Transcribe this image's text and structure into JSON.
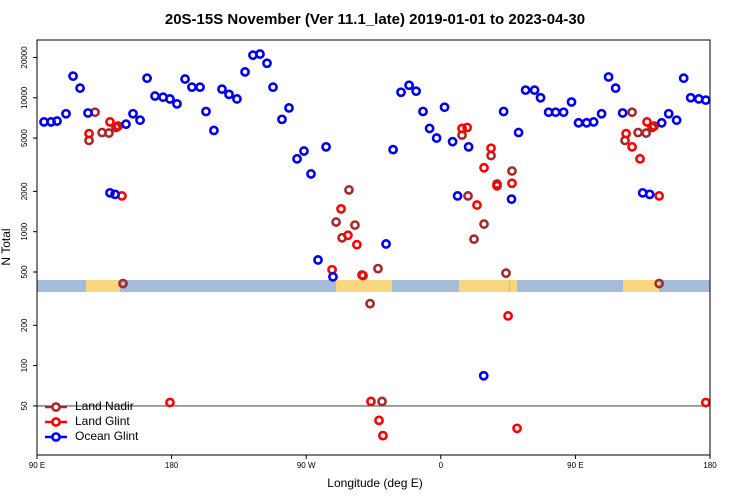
{
  "chart_data": {
    "type": "scatter",
    "title": "20S-15S November (Ver 11.1_late)   2019-01-01 to 2023-04-30",
    "x_label": "Longitude (deg E)",
    "y_label": "N Total",
    "log_y": true,
    "xlim": [
      90,
      540
    ],
    "ylim": [
      21.5,
      27000
    ],
    "xticks": [
      {
        "value": 90,
        "label": "90 E"
      },
      {
        "value": 180,
        "label": "180"
      },
      {
        "value": 270,
        "label": "90 W"
      },
      {
        "value": 360,
        "label": "0"
      },
      {
        "value": 450,
        "label": "90 E"
      },
      {
        "value": 540,
        "label": "180"
      }
    ],
    "yticks": [
      50,
      100,
      200,
      500,
      1000,
      2000,
      5000,
      10000,
      20000
    ],
    "reference_line": 50,
    "legend": "lower left",
    "series": [
      {
        "name": "Land Nadir",
        "color": "#a52a2a",
        "x": [
          124.8,
          128.8,
          133.5,
          138.1,
          142.8,
          147.5,
          290.0,
          294.0,
          298.6,
          302.6,
          307.3,
          312.7,
          318.0,
          320.7,
          374.2,
          378.2,
          382.2,
          388.9,
          393.6,
          397.6,
          403.6,
          407.6,
          483.2,
          487.9,
          491.9,
          497.3,
          501.3,
          506.0
        ],
        "values": [
          4800,
          7800,
          5500,
          5450,
          6000,
          410,
          1180,
          900,
          2050,
          1120,
          475,
          290,
          530,
          54,
          5260,
          1850,
          880,
          1140,
          3700,
          2270,
          490,
          2840,
          4800,
          7800,
          5500,
          5450,
          6000,
          410
        ]
      },
      {
        "name": "Land Glint",
        "color": "#ff0000",
        "x": [
          124.8,
          138.8,
          144.2,
          146.8,
          178.9,
          287.3,
          293.3,
          297.9,
          303.9,
          308.0,
          313.3,
          318.7,
          321.3,
          374.2,
          377.6,
          384.2,
          388.9,
          393.6,
          397.6,
          407.6,
          405.0,
          411.0,
          483.9,
          487.9,
          493.2,
          497.9,
          502.6,
          506.0,
          537.2
        ],
        "values": [
          5400,
          6600,
          6150,
          1850,
          53,
          520,
          1480,
          940,
          800,
          470,
          54,
          39,
          30,
          5900,
          6000,
          1580,
          3000,
          4200,
          2200,
          2300,
          235,
          34,
          5400,
          4300,
          3500,
          6600,
          6150,
          1850,
          53
        ]
      },
      {
        "name": "Ocean Glint",
        "color": "#0000ee",
        "x": [
          94.7,
          99.4,
          103.4,
          109.4,
          114.1,
          118.8,
          124.1,
          149.5,
          154.2,
          158.9,
          163.6,
          168.9,
          174.3,
          178.9,
          183.6,
          189.0,
          193.6,
          199.0,
          203.0,
          208.3,
          213.7,
          218.4,
          223.7,
          229.1,
          234.4,
          239.1,
          243.8,
          247.8,
          253.8,
          258.5,
          263.9,
          268.5,
          273.2,
          283.3,
          277.9,
          287.9,
          323.4,
          328.1,
          333.4,
          338.8,
          343.5,
          348.1,
          352.5,
          357.2,
          362.5,
          367.9,
          371.2,
          378.6,
          402.0,
          407.3,
          412.0,
          416.7,
          422.7,
          426.7,
          432.1,
          436.8,
          442.1,
          447.4,
          452.1,
          457.5,
          462.2,
          467.5,
          472.2,
          476.9,
          481.6,
          495.0,
          499.7,
          507.7,
          512.4,
          517.7,
          522.4,
          527.1,
          532.5,
          537.2,
          388.7,
          138.8,
          142.2
        ],
        "values": [
          6600,
          6600,
          6700,
          7600,
          14500,
          11800,
          7700,
          6350,
          7600,
          6800,
          14000,
          10300,
          10100,
          9800,
          9000,
          13800,
          12000,
          12000,
          7900,
          5700,
          11600,
          10600,
          9800,
          15600,
          20800,
          21200,
          18100,
          12000,
          6900,
          8400,
          3500,
          4000,
          2700,
          4300,
          615,
          460,
          810,
          4100,
          11000,
          12400,
          11200,
          7900,
          5900,
          5000,
          8500,
          4700,
          1850,
          4300,
          7900,
          1750,
          5500,
          11400,
          11400,
          10000,
          7800,
          7800,
          7800,
          9300,
          6500,
          6500,
          6600,
          7600,
          14300,
          11800,
          7700,
          1950,
          1900,
          6500,
          7600,
          6800,
          14000,
          10000,
          9800,
          9600,
          84,
          1950,
          1900
        ]
      }
    ]
  }
}
